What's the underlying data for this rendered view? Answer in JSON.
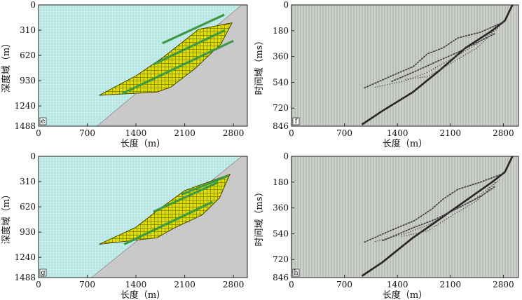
{
  "figure": {
    "colors": {
      "water": "#b6e6e4",
      "water_grid": "#ffffff",
      "ground": "#c9c9c9",
      "layer_fill": "#dede00",
      "layer_grid": "#7a7a00",
      "layer_edge": "#4a4a00",
      "stripe": "#3e9a44",
      "seis_bg": "#cdd0cb",
      "seis_trace": "#9ea29c",
      "event": "#2e2e2e"
    }
  },
  "chart_data": [
    {
      "type": "area",
      "panel_label": "e",
      "title": "",
      "xlabel": "长度（m）",
      "ylabel": "深度域（m）",
      "xlim": [
        0,
        3000
      ],
      "ylim": [
        1488,
        0
      ],
      "xticks": [
        "0",
        "700",
        "1400",
        "2100",
        "2800"
      ],
      "xtick_values": [
        0,
        700,
        1400,
        2100,
        2800
      ],
      "yticks": [
        "0",
        "310",
        "620",
        "930",
        "1240",
        "1488"
      ],
      "ytick_values": [
        0,
        310,
        620,
        930,
        1240,
        1488
      ],
      "seafloor": [
        [
          2920,
          0
        ],
        [
          840,
          1488
        ]
      ],
      "layer_polygon": [
        [
          870,
          1110
        ],
        [
          1400,
          870
        ],
        [
          1780,
          650
        ],
        [
          2300,
          300
        ],
        [
          2780,
          220
        ],
        [
          2620,
          480
        ],
        [
          2250,
          780
        ],
        [
          1900,
          1010
        ],
        [
          1700,
          1070
        ]
      ],
      "stripes": [
        {
          "name": "stripe-1",
          "points": [
            [
              1200,
              1090
            ],
            [
              2800,
              440
            ]
          ]
        },
        {
          "name": "stripe-2",
          "points": [
            [
              1650,
              730
            ],
            [
              2680,
              310
            ]
          ]
        },
        {
          "name": "stripe-3",
          "points": [
            [
              1780,
              470
            ],
            [
              2670,
              120
            ]
          ]
        }
      ]
    },
    {
      "type": "area",
      "panel_label": "g",
      "title": "",
      "xlabel": "长度（m）",
      "ylabel": "深度域（m）",
      "xlim": [
        0,
        3000
      ],
      "ylim": [
        1488,
        0
      ],
      "xticks": [
        "0",
        "700",
        "1400",
        "2100",
        "2800"
      ],
      "xtick_values": [
        0,
        700,
        1400,
        2100,
        2800
      ],
      "yticks": [
        "0",
        "310",
        "620",
        "930",
        "1240",
        "1488"
      ],
      "ytick_values": [
        0,
        310,
        620,
        930,
        1240,
        1488
      ],
      "seafloor": [
        [
          2920,
          0
        ],
        [
          760,
          1488
        ]
      ],
      "layer_polygon": [
        [
          870,
          1080
        ],
        [
          1400,
          870
        ],
        [
          1700,
          670
        ],
        [
          2100,
          420
        ],
        [
          2750,
          220
        ],
        [
          2600,
          510
        ],
        [
          2350,
          720
        ],
        [
          1950,
          880
        ],
        [
          1700,
          1000
        ]
      ],
      "stripes": [
        {
          "name": "stripe-1",
          "points": [
            [
              1230,
              1080
            ],
            [
              2500,
              560
            ]
          ]
        },
        {
          "name": "stripe-2",
          "points": [
            [
              1650,
              680
            ],
            [
              2580,
              320
            ]
          ]
        },
        {
          "name": "stripe-3",
          "points": [
            [
              2050,
              470
            ],
            [
              2720,
              240
            ]
          ]
        }
      ]
    },
    {
      "type": "line",
      "panel_label": "f",
      "title": "",
      "xlabel": "长度（m）",
      "ylabel": "时间域（ms）",
      "xlim": [
        0,
        3000
      ],
      "ylim": [
        846,
        0
      ],
      "xticks": [
        "0",
        "700",
        "1400",
        "2100",
        "2800"
      ],
      "xtick_values": [
        0,
        700,
        1400,
        2100,
        2800
      ],
      "yticks": [
        "0",
        "180",
        "360",
        "540",
        "720",
        "846"
      ],
      "ytick_values": [
        0,
        180,
        360,
        540,
        720,
        846
      ],
      "series": [
        {
          "name": "seafloor-reflection",
          "style": "thick",
          "x": [
            930,
            1200,
            1600,
            1950,
            2300,
            2650,
            2820,
            2920
          ],
          "y": [
            835,
            740,
            610,
            460,
            300,
            180,
            110,
            0
          ]
        },
        {
          "name": "upper-reflection",
          "style": "thin",
          "x": [
            960,
            1300,
            1610,
            1800,
            2000,
            2200,
            2500,
            2800
          ],
          "y": [
            580,
            500,
            430,
            340,
            300,
            230,
            190,
            120
          ]
        },
        {
          "name": "middle-reflection",
          "style": "thin",
          "x": [
            1320,
            1650,
            1900,
            2200,
            2500,
            2690
          ],
          "y": [
            535,
            460,
            400,
            330,
            250,
            200
          ]
        },
        {
          "name": "lower-reflection",
          "style": "dotted",
          "x": [
            1100,
            1500,
            1800,
            2100,
            2400,
            2680
          ],
          "y": [
            575,
            530,
            470,
            380,
            290,
            180
          ]
        },
        {
          "name": "faint-reflection",
          "style": "dotted",
          "x": [
            1500,
            1800,
            2100,
            2450,
            2750
          ],
          "y": [
            520,
            500,
            410,
            300,
            150
          ]
        }
      ]
    },
    {
      "type": "line",
      "panel_label": "h",
      "title": "",
      "xlabel": "长度（m）",
      "ylabel": "时间域（ms）",
      "xlim": [
        0,
        3000
      ],
      "ylim": [
        846,
        0
      ],
      "xticks": [
        "0",
        "700",
        "1400",
        "2100",
        "2800"
      ],
      "xtick_values": [
        0,
        700,
        1400,
        2100,
        2800
      ],
      "yticks": [
        "0",
        "180",
        "360",
        "540",
        "720",
        "846"
      ],
      "ytick_values": [
        0,
        180,
        360,
        540,
        720,
        846
      ],
      "series": [
        {
          "name": "seafloor-reflection",
          "style": "thick",
          "x": [
            930,
            1200,
            1600,
            1900,
            2300,
            2650,
            2820,
            2920
          ],
          "y": [
            835,
            740,
            570,
            460,
            310,
            180,
            110,
            0
          ]
        },
        {
          "name": "upper-reflection",
          "style": "thin",
          "x": [
            960,
            1300,
            1620,
            1850,
            2000,
            2200,
            2500,
            2800
          ],
          "y": [
            600,
            520,
            450,
            370,
            300,
            230,
            180,
            120
          ]
        },
        {
          "name": "middle-reflection",
          "style": "thin",
          "x": [
            1200,
            1600,
            1900,
            2200,
            2500,
            2690
          ],
          "y": [
            590,
            500,
            440,
            360,
            280,
            210
          ]
        },
        {
          "name": "lower-reflection",
          "style": "dotted",
          "x": [
            1100,
            1500,
            1800,
            2100,
            2400,
            2700
          ],
          "y": [
            595,
            540,
            480,
            390,
            310,
            180
          ]
        },
        {
          "name": "faint-reflection",
          "style": "dotted",
          "x": [
            1450,
            1800,
            2100,
            2450,
            2750
          ],
          "y": [
            560,
            520,
            420,
            310,
            160
          ]
        }
      ]
    }
  ]
}
